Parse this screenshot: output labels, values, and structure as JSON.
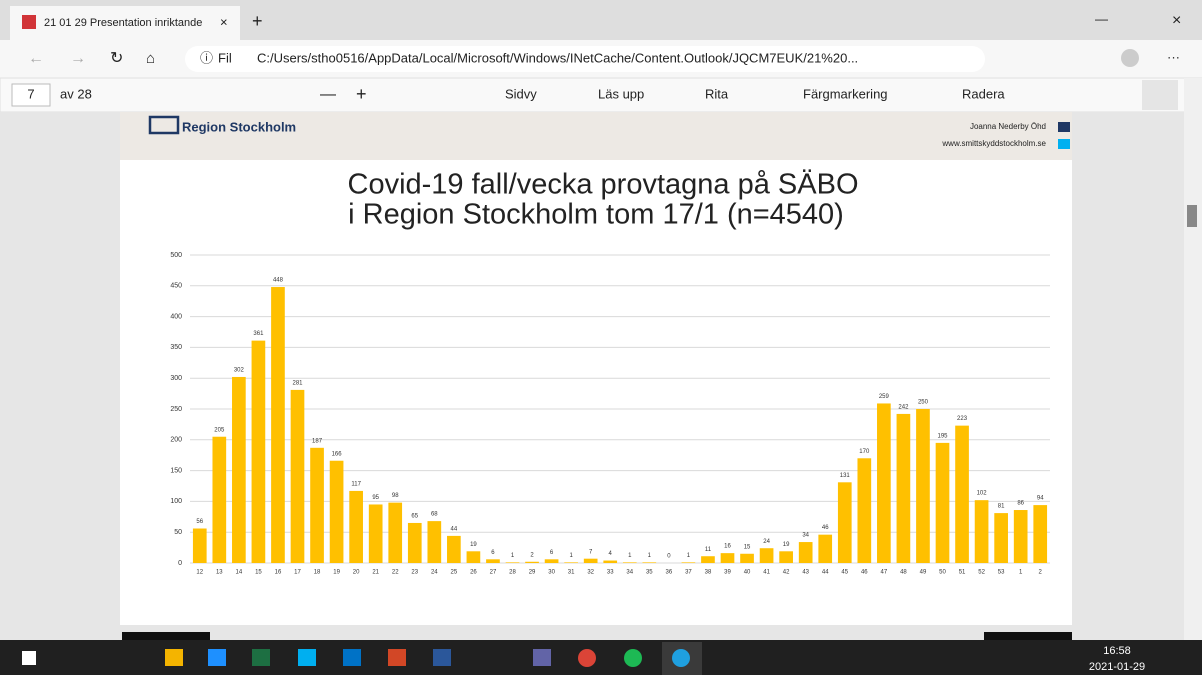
{
  "browser": {
    "tab_title": "21 01 29 Presentation inriktande",
    "address_prefix": "Fil",
    "url": "C:/Users/stho0516/AppData/Local/Microsoft/Windows/INetCache/Content.Outlook/JQCM7EUK/21%20...",
    "page_number": "7",
    "page_count": "av 28",
    "toolbar": [
      "Sidvy",
      "Läs upp",
      "Rita",
      "Färgmarkering",
      "Radera"
    ]
  },
  "slide": {
    "logo_text": "Region Stockholm",
    "author": "Joanna Nederby Öhd",
    "website": "www.smittskyddstockholm.se"
  },
  "chart_data": {
    "type": "bar",
    "title": [
      "Covid-19 fall/vecka provtagna på SÄBO",
      "i Region Stockholm tom 17/1 (n=4540)"
    ],
    "categories": [
      "12",
      "13",
      "14",
      "15",
      "16",
      "17",
      "18",
      "19",
      "20",
      "21",
      "22",
      "23",
      "24",
      "25",
      "26",
      "27",
      "28",
      "29",
      "30",
      "31",
      "32",
      "33",
      "34",
      "35",
      "36",
      "37",
      "38",
      "39",
      "40",
      "41",
      "42",
      "43",
      "44",
      "45",
      "46",
      "47",
      "48",
      "49",
      "50",
      "51",
      "52",
      "53",
      "1",
      "2"
    ],
    "values": [
      56,
      205,
      302,
      361,
      448,
      281,
      187,
      166,
      117,
      95,
      98,
      65,
      68,
      44,
      19,
      6,
      1,
      2,
      6,
      1,
      7,
      4,
      1,
      1,
      0,
      1,
      11,
      16,
      15,
      24,
      19,
      34,
      46,
      131,
      170,
      259,
      242,
      250,
      195,
      223,
      102,
      81,
      86,
      94
    ],
    "color": "#ffc000",
    "ylim": [
      0,
      500
    ],
    "yticks": [
      0,
      50,
      100,
      150,
      200,
      250,
      300,
      350,
      400,
      450,
      500
    ],
    "grid": true
  },
  "taskbar": {
    "time": "16:58",
    "date": "2021-01-29"
  }
}
